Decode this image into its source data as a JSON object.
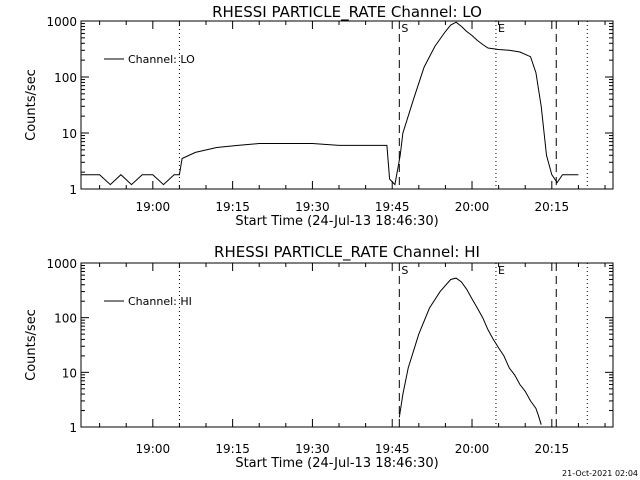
{
  "footer": {
    "timestamp": "21-Oct-2021 02:04"
  },
  "chart_data": [
    {
      "type": "line",
      "title": "RHESSI PARTICLE_RATE Channel: LO",
      "xlabel": "Start Time (24-Jul-13 18:46:30)",
      "ylabel": "Counts/sec",
      "yscale": "log",
      "ylim": [
        1,
        1000
      ],
      "xlim": [
        "18:46:30",
        "20:26:30"
      ],
      "x_ticks": [
        "19:00",
        "19:15",
        "19:30",
        "19:45",
        "20:00",
        "20:15"
      ],
      "y_ticks": [
        "1",
        "10",
        "100",
        "1000"
      ],
      "legend": {
        "position": "top-left"
      },
      "series": [
        {
          "name": "Channel: LO",
          "x": [
            "18:46:30",
            "18:50:00",
            "18:52:00",
            "18:54:00",
            "18:56:00",
            "18:58:00",
            "19:00:00",
            "19:02:00",
            "19:04:00",
            "19:05:00",
            "19:05:30",
            "19:08:00",
            "19:12:00",
            "19:16:00",
            "19:20:00",
            "19:25:00",
            "19:30:00",
            "19:35:00",
            "19:40:00",
            "19:44:00",
            "19:44:30",
            "19:45:30",
            "19:46:30",
            "19:47:00",
            "19:49:00",
            "19:51:00",
            "19:53:00",
            "19:55:00",
            "19:56:00",
            "19:57:00",
            "19:58:00",
            "19:59:00",
            "20:00:00",
            "20:01:00",
            "20:02:00",
            "20:03:00",
            "20:05:00",
            "20:07:00",
            "20:09:00",
            "20:11:00",
            "20:12:00",
            "20:13:00",
            "20:14:00",
            "20:15:00",
            "20:16:00",
            "20:17:00",
            "20:20:00"
          ],
          "y": [
            1.8,
            1.8,
            1.2,
            1.8,
            1.2,
            1.8,
            1.8,
            1.2,
            1.8,
            1.8,
            3.5,
            4.5,
            5.5,
            6.0,
            6.5,
            6.5,
            6.5,
            6.0,
            6.0,
            6.0,
            1.5,
            1.2,
            4.0,
            10,
            40,
            150,
            350,
            650,
            850,
            950,
            800,
            650,
            550,
            450,
            380,
            330,
            310,
            300,
            280,
            230,
            120,
            30,
            4,
            1.8,
            1.3,
            1.8,
            1.8
          ]
        }
      ],
      "markers": [
        {
          "label": "S",
          "time": "19:46:20",
          "style": "dashed"
        },
        {
          "label": "E",
          "time": "20:04:30",
          "style": "dotted"
        },
        {
          "label": "",
          "time": "20:15:50",
          "style": "dashed"
        },
        {
          "label": "",
          "time": "19:05:00",
          "style": "dotted"
        },
        {
          "label": "",
          "time": "20:21:40",
          "style": "dotted"
        }
      ]
    },
    {
      "type": "line",
      "title": "RHESSI PARTICLE_RATE Channel: HI",
      "xlabel": "Start Time (24-Jul-13 18:46:30)",
      "ylabel": "Counts/sec",
      "yscale": "log",
      "ylim": [
        1,
        1000
      ],
      "xlim": [
        "18:46:30",
        "20:26:30"
      ],
      "x_ticks": [
        "19:00",
        "19:15",
        "19:30",
        "19:45",
        "20:00",
        "20:15"
      ],
      "y_ticks": [
        "1",
        "10",
        "100",
        "1000"
      ],
      "legend": {
        "position": "top-left"
      },
      "series": [
        {
          "name": "Channel: HI",
          "x": [
            "19:46:20",
            "19:47:00",
            "19:48:00",
            "19:50:00",
            "19:52:00",
            "19:54:00",
            "19:56:00",
            "19:57:00",
            "19:58:00",
            "19:59:00",
            "20:00:00",
            "20:01:00",
            "20:02:00",
            "20:03:00",
            "20:04:00",
            "20:05:00",
            "20:06:00",
            "20:07:00",
            "20:08:00",
            "20:09:00",
            "20:10:00",
            "20:11:00",
            "20:12:00",
            "20:12:30",
            "20:13:00"
          ],
          "y": [
            1.5,
            4,
            12,
            50,
            150,
            300,
            500,
            530,
            450,
            330,
            220,
            150,
            100,
            60,
            40,
            28,
            20,
            12,
            9,
            6,
            4.5,
            3,
            2.2,
            1.6,
            1.1
          ]
        }
      ],
      "markers": [
        {
          "label": "S",
          "time": "19:46:20",
          "style": "dashed"
        },
        {
          "label": "E",
          "time": "20:04:30",
          "style": "dotted"
        },
        {
          "label": "",
          "time": "20:15:50",
          "style": "dashed"
        },
        {
          "label": "",
          "time": "19:05:00",
          "style": "dotted"
        },
        {
          "label": "",
          "time": "20:21:40",
          "style": "dotted"
        }
      ]
    }
  ]
}
